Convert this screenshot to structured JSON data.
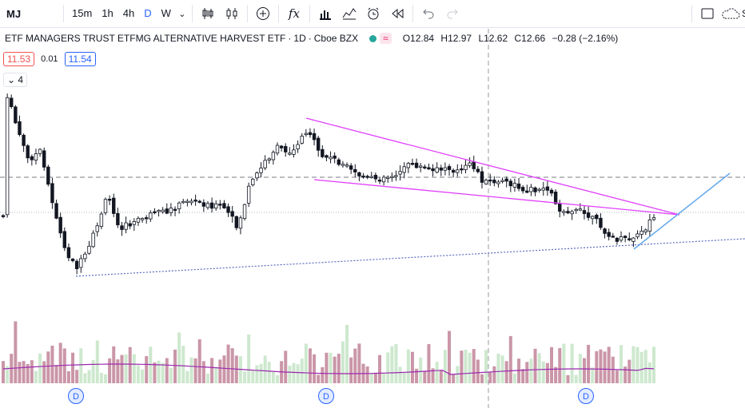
{
  "toolbar": {
    "symbol": "MJ",
    "timeframes": [
      {
        "label": "15m",
        "active": false
      },
      {
        "label": "1h",
        "active": false
      },
      {
        "label": "4h",
        "active": false
      },
      {
        "label": "D",
        "active": true
      },
      {
        "label": "W",
        "active": false
      }
    ],
    "indicators_label": "fx",
    "right_cut_label": "S"
  },
  "legend": {
    "title": "ETF MANAGERS TRUST ETFMG ALTERNATIVE HARVEST ETF",
    "interval": "1D",
    "exchange": "Cboe BZX",
    "wave_glyph": "≈",
    "open": "O12.84",
    "high": "H12.97",
    "low": "L12.62",
    "close": "C12.66",
    "change": "−0.28 (−2.16%)"
  },
  "prices": {
    "sell": "11.53",
    "spread": "0.01",
    "buy": "11.54"
  },
  "collapse": {
    "count": "4"
  },
  "dividend_marker": "D",
  "colors": {
    "up": "#ffffff",
    "down": "#131722",
    "wedge": "#e040fb",
    "trend": "#5c6bc0",
    "arrow": "#64a8ea",
    "vol_up": "#c8e6c9",
    "vol_down": "#c48b9f",
    "vol_ma": "#9c27b0",
    "crosshair": "#9598a1"
  }
}
